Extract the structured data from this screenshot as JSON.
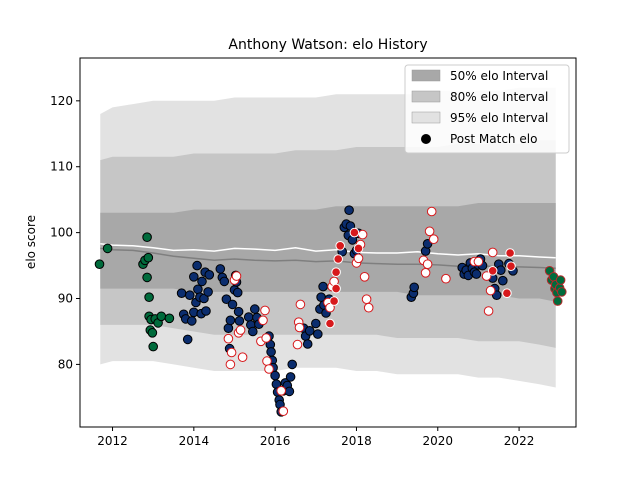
{
  "chart_data": {
    "type": "scatter",
    "title": "Anthony Watson: elo History",
    "xlabel": "",
    "ylabel": "elo score",
    "xlim": [
      2011.2,
      2023.4
    ],
    "ylim": [
      70.5,
      126.5
    ],
    "x_ticks": [
      2012,
      2014,
      2016,
      2018,
      2020,
      2022
    ],
    "y_ticks": [
      80,
      90,
      100,
      110,
      120
    ],
    "grid": false,
    "legend_position": "top-right",
    "legend": [
      {
        "label": "50% elo Interval",
        "kind": "band",
        "color": "#a8a8a8"
      },
      {
        "label": "80% elo Interval",
        "kind": "band",
        "color": "#c6c6c6"
      },
      {
        "label": "95% elo Interval",
        "kind": "band",
        "color": "#e2e2e2"
      },
      {
        "label": "Post Match elo",
        "kind": "marker",
        "color": "#000000"
      }
    ],
    "colors": {
      "club_green": "#006b3c",
      "club_navy": "#0b2d6e",
      "international_red": "#d7191c",
      "international_white": "#ffffff",
      "club_red": "#b5282a",
      "mean_line": "#ffffff",
      "median_line": "#7f7f7f"
    },
    "bands": {
      "x": [
        2011.7,
        2012.0,
        2012.5,
        2013.0,
        2013.5,
        2014.0,
        2014.5,
        2015.0,
        2015.5,
        2016.0,
        2016.5,
        2017.0,
        2017.5,
        2018.0,
        2018.5,
        2019.0,
        2019.5,
        2020.0,
        2020.5,
        2021.0,
        2021.5,
        2022.0,
        2022.5,
        2022.9
      ],
      "p95_low": [
        80.0,
        80.5,
        80.5,
        80.5,
        80.0,
        79.5,
        79.0,
        79.0,
        79.0,
        79.0,
        79.5,
        79.5,
        79.5,
        79.0,
        79.0,
        78.5,
        78.5,
        78.5,
        78.5,
        78.0,
        78.0,
        77.5,
        77.0,
        76.5
      ],
      "p80_low": [
        86.0,
        86.0,
        86.0,
        86.0,
        85.5,
        85.0,
        84.5,
        84.5,
        84.5,
        84.5,
        84.5,
        84.5,
        84.5,
        84.5,
        84.5,
        84.0,
        84.0,
        84.0,
        84.0,
        83.5,
        83.5,
        83.5,
        83.0,
        82.5
      ],
      "p50_low": [
        91.5,
        91.5,
        91.5,
        91.5,
        91.5,
        91.0,
        91.0,
        91.0,
        91.0,
        91.0,
        91.0,
        91.0,
        91.0,
        91.0,
        91.0,
        91.0,
        90.5,
        90.5,
        90.5,
        90.5,
        90.5,
        90.0,
        90.0,
        89.5
      ],
      "p50_high": [
        103.0,
        103.0,
        103.0,
        103.0,
        103.0,
        103.5,
        103.5,
        103.5,
        103.5,
        103.5,
        103.5,
        103.5,
        104.0,
        104.0,
        104.0,
        104.0,
        104.0,
        104.0,
        104.0,
        104.5,
        104.5,
        104.5,
        104.5,
        104.5
      ],
      "p80_high": [
        111.0,
        111.5,
        111.5,
        111.5,
        111.5,
        112.0,
        112.0,
        112.0,
        112.0,
        112.0,
        112.5,
        112.5,
        112.5,
        113.0,
        113.0,
        113.0,
        113.0,
        113.0,
        113.5,
        113.5,
        113.5,
        113.5,
        114.0,
        114.0
      ],
      "p95_high": [
        118.0,
        119.0,
        119.5,
        120.0,
        120.0,
        120.0,
        120.0,
        120.5,
        120.5,
        120.5,
        120.5,
        120.5,
        121.0,
        121.0,
        121.0,
        121.0,
        121.0,
        121.5,
        121.5,
        121.5,
        121.5,
        122.0,
        122.0,
        122.0
      ]
    },
    "mean_line": {
      "x": [
        2011.7,
        2012.0,
        2012.5,
        2013.0,
        2013.5,
        2014.0,
        2014.5,
        2015.0,
        2015.5,
        2016.0,
        2016.5,
        2017.0,
        2017.5,
        2018.0,
        2018.5,
        2019.0,
        2019.5,
        2020.0,
        2020.5,
        2021.0,
        2021.5,
        2022.0,
        2022.5,
        2022.9
      ],
      "y": [
        98.3,
        98.1,
        98.0,
        97.7,
        97.3,
        97.4,
        97.2,
        97.6,
        97.5,
        97.3,
        97.7,
        97.2,
        97.4,
        97.0,
        96.9,
        96.9,
        97.1,
        96.8,
        96.6,
        96.8,
        96.5,
        96.5,
        96.3,
        96.2
      ]
    },
    "median_line": {
      "x": [
        2011.7,
        2012.0,
        2012.5,
        2013.0,
        2013.5,
        2014.0,
        2014.5,
        2015.0,
        2015.5,
        2016.0,
        2016.5,
        2017.0,
        2017.5,
        2018.0,
        2018.5,
        2019.0,
        2019.5,
        2020.0,
        2020.5,
        2021.0,
        2021.5,
        2022.0,
        2022.5,
        2022.9
      ],
      "y": [
        97.6,
        97.4,
        97.3,
        96.9,
        96.4,
        96.1,
        95.8,
        96.0,
        95.8,
        95.7,
        95.8,
        95.6,
        95.7,
        95.4,
        95.3,
        95.2,
        95.2,
        95.1,
        94.9,
        95.0,
        94.8,
        94.8,
        94.7,
        94.6
      ]
    },
    "series": [
      {
        "style": "club_green",
        "points": [
          [
            2011.68,
            95.2
          ],
          [
            2011.88,
            97.6
          ],
          [
            2012.75,
            95.2
          ],
          [
            2012.8,
            95.8
          ],
          [
            2012.85,
            99.3
          ],
          [
            2012.88,
            96.2
          ],
          [
            2012.85,
            93.2
          ],
          [
            2012.9,
            90.2
          ],
          [
            2012.9,
            87.3
          ],
          [
            2012.95,
            86.8
          ],
          [
            2012.93,
            85.2
          ],
          [
            2012.98,
            84.8
          ],
          [
            2013.0,
            82.7
          ],
          [
            2013.05,
            86.9
          ],
          [
            2013.12,
            86.3
          ],
          [
            2013.2,
            87.3
          ],
          [
            2013.4,
            87.0
          ]
        ]
      },
      {
        "style": "club_navy",
        "points": [
          [
            2013.7,
            90.8
          ],
          [
            2013.75,
            87.6
          ],
          [
            2013.8,
            86.9
          ],
          [
            2013.85,
            83.8
          ],
          [
            2013.9,
            90.5
          ],
          [
            2013.95,
            86.6
          ],
          [
            2014.0,
            87.9
          ],
          [
            2014.0,
            93.3
          ],
          [
            2014.05,
            89.4
          ],
          [
            2014.08,
            95.0
          ],
          [
            2014.1,
            91.4
          ],
          [
            2014.15,
            90.2
          ],
          [
            2014.18,
            87.7
          ],
          [
            2014.2,
            92.6
          ],
          [
            2014.25,
            90.0
          ],
          [
            2014.28,
            94.0
          ],
          [
            2014.3,
            88.1
          ],
          [
            2014.35,
            91.0
          ],
          [
            2014.38,
            93.6
          ],
          [
            2014.65,
            94.5
          ],
          [
            2014.7,
            93.2
          ],
          [
            2014.75,
            92.6
          ],
          [
            2014.8,
            89.9
          ],
          [
            2014.85,
            85.5
          ],
          [
            2014.88,
            82.4
          ],
          [
            2014.9,
            86.7
          ],
          [
            2014.95,
            89.1
          ],
          [
            2015.0,
            91.3
          ],
          [
            2015.03,
            93.5
          ],
          [
            2015.05,
            92.5
          ],
          [
            2015.08,
            90.9
          ],
          [
            2015.1,
            88.0
          ],
          [
            2015.12,
            86.6
          ],
          [
            2015.35,
            87.2
          ],
          [
            2015.4,
            86.0
          ],
          [
            2015.45,
            85.0
          ],
          [
            2015.5,
            88.4
          ],
          [
            2015.55,
            87.1
          ],
          [
            2015.6,
            86.1
          ],
          [
            2015.85,
            84.3
          ],
          [
            2015.88,
            83.0
          ],
          [
            2015.9,
            81.9
          ],
          [
            2015.93,
            80.6
          ],
          [
            2015.95,
            79.5
          ],
          [
            2016.0,
            78.3
          ],
          [
            2016.03,
            77.0
          ],
          [
            2016.06,
            75.8
          ],
          [
            2016.1,
            74.6
          ],
          [
            2016.12,
            73.9
          ],
          [
            2016.15,
            72.8
          ],
          [
            2016.2,
            76.0
          ],
          [
            2016.25,
            77.2
          ],
          [
            2016.3,
            76.8
          ],
          [
            2016.35,
            75.9
          ],
          [
            2016.38,
            78.1
          ],
          [
            2016.42,
            80.0
          ],
          [
            2016.7,
            85.5
          ],
          [
            2016.75,
            84.3
          ],
          [
            2016.8,
            83.1
          ],
          [
            2016.85,
            85.1
          ],
          [
            2017.0,
            86.2
          ],
          [
            2017.05,
            84.6
          ],
          [
            2017.1,
            88.4
          ],
          [
            2017.13,
            90.2
          ],
          [
            2017.18,
            91.8
          ],
          [
            2017.2,
            89.0
          ],
          [
            2017.25,
            87.8
          ],
          [
            2017.3,
            89.3
          ],
          [
            2017.33,
            89.9
          ],
          [
            2017.65,
            97.1
          ],
          [
            2017.7,
            100.8
          ],
          [
            2017.75,
            101.3
          ],
          [
            2017.8,
            99.6
          ],
          [
            2017.82,
            103.4
          ],
          [
            2017.85,
            101.0
          ],
          [
            2017.9,
            98.9
          ],
          [
            2017.95,
            96.8
          ],
          [
            2018.0,
            97.3
          ],
          [
            2018.05,
            99.9
          ],
          [
            2019.35,
            90.2
          ],
          [
            2019.4,
            90.8
          ],
          [
            2019.42,
            91.7
          ],
          [
            2019.7,
            97.2
          ],
          [
            2019.75,
            98.3
          ],
          [
            2020.6,
            94.7
          ],
          [
            2020.65,
            93.7
          ],
          [
            2020.7,
            94.3
          ],
          [
            2020.75,
            93.5
          ],
          [
            2020.8,
            95.4
          ],
          [
            2020.85,
            94.6
          ],
          [
            2020.9,
            94.0
          ],
          [
            2020.95,
            93.7
          ],
          [
            2021.0,
            95.1
          ],
          [
            2021.05,
            96.0
          ],
          [
            2021.1,
            95.0
          ],
          [
            2021.35,
            93.1
          ],
          [
            2021.4,
            91.5
          ],
          [
            2021.45,
            90.5
          ],
          [
            2021.5,
            95.2
          ],
          [
            2021.55,
            94.3
          ],
          [
            2021.6,
            92.7
          ],
          [
            2021.75,
            95.3
          ],
          [
            2021.85,
            94.2
          ]
        ]
      },
      {
        "style": "international_white",
        "points": [
          [
            2014.85,
            83.9
          ],
          [
            2014.9,
            80.0
          ],
          [
            2014.93,
            81.8
          ],
          [
            2015.0,
            92.8
          ],
          [
            2015.05,
            93.4
          ],
          [
            2015.1,
            84.8
          ],
          [
            2015.15,
            85.2
          ],
          [
            2015.2,
            81.1
          ],
          [
            2015.65,
            83.5
          ],
          [
            2015.7,
            86.7
          ],
          [
            2015.75,
            88.2
          ],
          [
            2015.78,
            84.0
          ],
          [
            2015.8,
            80.5
          ],
          [
            2015.85,
            79.3
          ],
          [
            2016.2,
            72.9
          ],
          [
            2016.15,
            76.0
          ],
          [
            2016.55,
            83.0
          ],
          [
            2016.58,
            86.4
          ],
          [
            2016.6,
            85.6
          ],
          [
            2016.62,
            89.1
          ],
          [
            2017.3,
            89.4
          ],
          [
            2017.35,
            88.6
          ],
          [
            2017.4,
            91.8
          ],
          [
            2017.45,
            92.6
          ],
          [
            2018.0,
            95.4
          ],
          [
            2018.05,
            96.1
          ],
          [
            2018.1,
            98.2
          ],
          [
            2018.15,
            99.7
          ],
          [
            2018.2,
            93.3
          ],
          [
            2018.25,
            89.9
          ],
          [
            2018.3,
            88.6
          ],
          [
            2019.65,
            95.8
          ],
          [
            2019.7,
            93.9
          ],
          [
            2019.75,
            95.2
          ],
          [
            2019.8,
            100.2
          ],
          [
            2019.85,
            103.2
          ],
          [
            2019.9,
            99.0
          ],
          [
            2020.2,
            93.0
          ],
          [
            2020.9,
            95.6
          ],
          [
            2021.0,
            95.6
          ],
          [
            2021.2,
            93.4
          ],
          [
            2021.25,
            88.1
          ],
          [
            2021.3,
            91.2
          ],
          [
            2021.35,
            97.0
          ]
        ]
      },
      {
        "style": "international_red",
        "points": [
          [
            2017.35,
            86.2
          ],
          [
            2017.45,
            89.6
          ],
          [
            2017.5,
            91.5
          ],
          [
            2017.5,
            94.0
          ],
          [
            2017.55,
            96.0
          ],
          [
            2017.6,
            98.0
          ],
          [
            2017.95,
            100.0
          ],
          [
            2018.05,
            97.6
          ],
          [
            2021.35,
            94.2
          ],
          [
            2021.7,
            90.8
          ],
          [
            2021.8,
            94.9
          ],
          [
            2021.78,
            96.9
          ]
        ]
      },
      {
        "style": "club_red",
        "points": [
          [
            2022.75,
            94.2
          ],
          [
            2022.8,
            92.8
          ],
          [
            2022.85,
            93.3
          ],
          [
            2022.88,
            91.5
          ],
          [
            2022.9,
            92.1
          ],
          [
            2022.93,
            90.9
          ],
          [
            2022.95,
            89.6
          ],
          [
            2023.0,
            91.6
          ],
          [
            2023.02,
            92.8
          ],
          [
            2023.05,
            91.0
          ]
        ]
      }
    ]
  }
}
